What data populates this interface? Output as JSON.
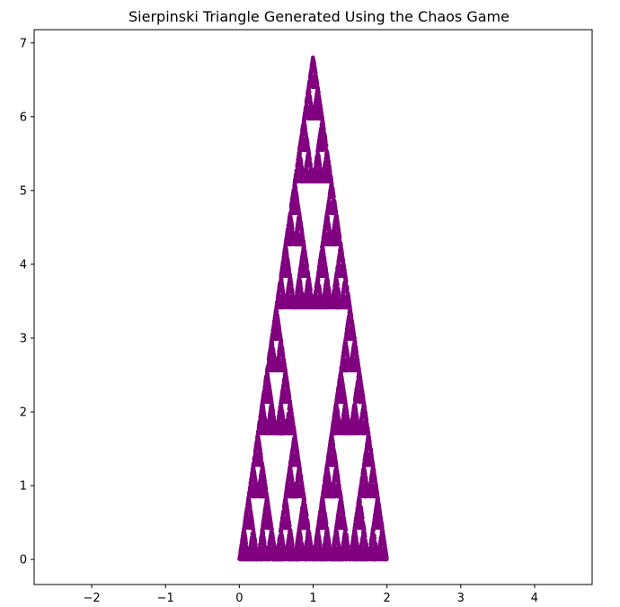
{
  "chart_data": {
    "type": "scatter",
    "title": "Sierpinski Triangle Generated Using the Chaos Game",
    "xlabel": "",
    "ylabel": "",
    "xlim": [
      -2.78,
      4.78
    ],
    "ylim": [
      -0.34,
      7.18
    ],
    "xticks": [
      -2,
      -1,
      0,
      1,
      2,
      3,
      4
    ],
    "xtick_labels": [
      "−2",
      "−1",
      "0",
      "1",
      "2",
      "3",
      "4"
    ],
    "yticks": [
      0,
      1,
      2,
      3,
      4,
      5,
      6,
      7
    ],
    "ytick_labels": [
      "0",
      "1",
      "2",
      "3",
      "4",
      "5",
      "6",
      "7"
    ],
    "grid": false,
    "legend": "none",
    "marker_color": "#800080",
    "vertices": [
      [
        0,
        0
      ],
      [
        2,
        0
      ],
      [
        1,
        6.83
      ]
    ],
    "series_visible_extent": {
      "x": [
        0,
        2
      ],
      "y": [
        0,
        6.83
      ]
    }
  }
}
